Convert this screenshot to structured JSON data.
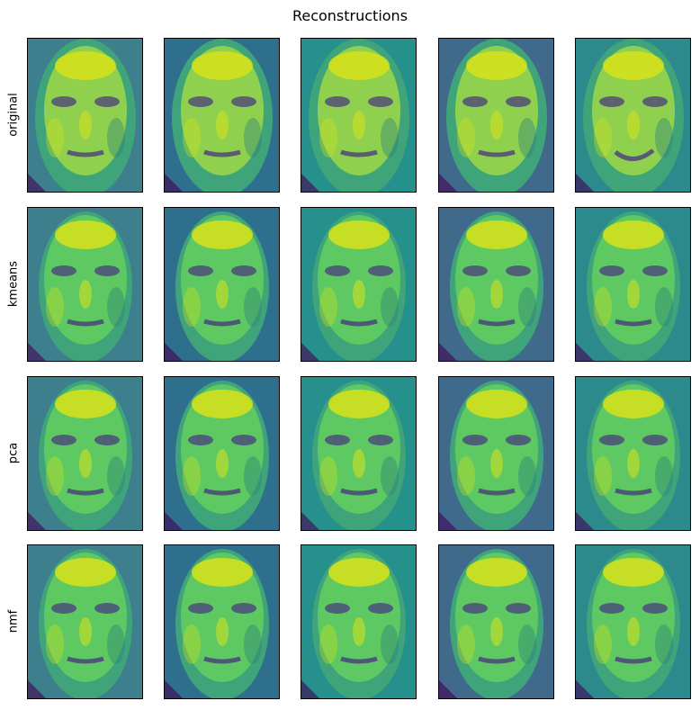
{
  "chart_data": {
    "type": "image_grid",
    "title": "Reconstructions",
    "row_labels": [
      "original",
      "kmeans",
      "pca",
      "nmf"
    ],
    "n_columns": 5,
    "colormap": "viridis",
    "ticks": "none",
    "grid": false,
    "legend": "none"
  }
}
